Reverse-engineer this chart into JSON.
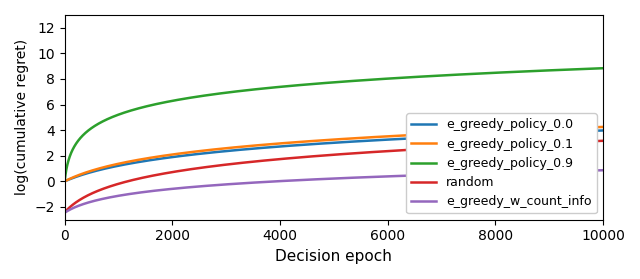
{
  "xlabel": "Decision epoch",
  "ylabel": "log(cumulative regret)",
  "xlim": [
    0,
    10000
  ],
  "ylim": [
    -3,
    13
  ],
  "yticks": [
    -2,
    0,
    2,
    4,
    6,
    8,
    10,
    12
  ],
  "xticks": [
    0,
    2000,
    4000,
    6000,
    8000,
    10000
  ],
  "lines": [
    {
      "label": "e_greedy_policy_0.0",
      "color": "#1f77b4",
      "style": "-",
      "a": 1.55,
      "b": 0.0012,
      "c": 0.0,
      "shift": 0.0
    },
    {
      "label": "e_greedy_policy_0.1",
      "color": "#ff7f0e",
      "style": "-",
      "a": 1.57,
      "b": 0.0014,
      "c": 0.0,
      "shift": 0.0
    },
    {
      "label": "e_greedy_policy_0.9",
      "color": "#2ca02c",
      "style": "-",
      "a": 1.6,
      "b": 0.025,
      "c": 0.0,
      "shift": 0.0
    },
    {
      "label": "random",
      "color": "#d62728",
      "style": "-",
      "a": 1.65,
      "b": 0.003,
      "c": 0.05,
      "shift": -2.5
    },
    {
      "label": "e_greedy_w_count_info",
      "color": "#9467bd",
      "style": "-",
      "a": 0.98,
      "b": 0.003,
      "c": 0.05,
      "shift": -2.5
    }
  ],
  "legend_loc": "lower right",
  "legend_fontsize": 9,
  "figsize": [
    6.4,
    2.79
  ],
  "dpi": 100,
  "linewidth": 1.8
}
